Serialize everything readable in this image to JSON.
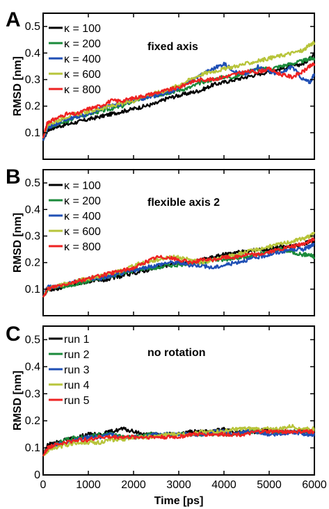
{
  "colors": {
    "black": "#000000",
    "green": "#1a8a3a",
    "blue": "#1f4fb5",
    "yellowgreen": "#b7c43a",
    "red": "#ee2222"
  },
  "x_axis": {
    "label": "Time [ps]",
    "range": [
      0,
      6000
    ],
    "ticks": [
      0,
      1000,
      2000,
      3000,
      4000,
      5000,
      6000
    ]
  },
  "chart_data": [
    {
      "type": "line",
      "panel_letter": "A",
      "annotation": "fixed axis",
      "ylabel": "RMSD [nm]",
      "ylim": [
        0,
        0.55
      ],
      "yticks": [
        "0.1",
        "0.2",
        "0.3",
        "0.4",
        "0.5"
      ],
      "x": [
        0,
        100,
        250,
        500,
        750,
        1000,
        1250,
        1500,
        1750,
        2000,
        2250,
        2500,
        2750,
        3000,
        3250,
        3500,
        3750,
        4000,
        4250,
        4500,
        4750,
        5000,
        5250,
        5500,
        5750,
        5900,
        6000
      ],
      "series": [
        {
          "name": "κ = 100",
          "values": [
            0.07,
            0.11,
            0.12,
            0.13,
            0.14,
            0.15,
            0.16,
            0.17,
            0.18,
            0.19,
            0.2,
            0.21,
            0.23,
            0.24,
            0.25,
            0.26,
            0.28,
            0.29,
            0.3,
            0.31,
            0.32,
            0.33,
            0.34,
            0.35,
            0.36,
            0.38,
            0.4
          ]
        },
        {
          "name": "κ = 200",
          "values": [
            0.07,
            0.12,
            0.13,
            0.14,
            0.16,
            0.17,
            0.18,
            0.19,
            0.2,
            0.22,
            0.23,
            0.24,
            0.25,
            0.26,
            0.27,
            0.29,
            0.3,
            0.31,
            0.31,
            0.33,
            0.34,
            0.34,
            0.35,
            0.36,
            0.37,
            0.38,
            0.38
          ]
        },
        {
          "name": "κ = 400",
          "values": [
            0.07,
            0.12,
            0.13,
            0.15,
            0.16,
            0.17,
            0.19,
            0.2,
            0.21,
            0.22,
            0.23,
            0.24,
            0.25,
            0.27,
            0.29,
            0.32,
            0.34,
            0.36,
            0.33,
            0.32,
            0.35,
            0.33,
            0.32,
            0.35,
            0.3,
            0.29,
            0.32
          ]
        },
        {
          "name": "κ = 600",
          "values": [
            0.08,
            0.13,
            0.14,
            0.16,
            0.17,
            0.18,
            0.19,
            0.2,
            0.21,
            0.22,
            0.24,
            0.25,
            0.26,
            0.28,
            0.3,
            0.32,
            0.33,
            0.34,
            0.35,
            0.36,
            0.37,
            0.38,
            0.39,
            0.4,
            0.41,
            0.43,
            0.44
          ]
        },
        {
          "name": "κ = 800",
          "values": [
            0.08,
            0.14,
            0.15,
            0.17,
            0.17,
            0.19,
            0.2,
            0.22,
            0.22,
            0.23,
            0.24,
            0.25,
            0.26,
            0.27,
            0.29,
            0.3,
            0.3,
            0.31,
            0.32,
            0.33,
            0.33,
            0.34,
            0.32,
            0.31,
            0.33,
            0.35,
            0.36
          ]
        }
      ]
    },
    {
      "type": "line",
      "panel_letter": "B",
      "annotation": "flexible axis 2",
      "ylabel": "RMSD [nm]",
      "ylim": [
        0,
        0.55
      ],
      "yticks": [
        "0.1",
        "0.2",
        "0.3",
        "0.4",
        "0.5"
      ],
      "x": [
        0,
        100,
        250,
        500,
        750,
        1000,
        1250,
        1500,
        1750,
        2000,
        2250,
        2500,
        2750,
        3000,
        3250,
        3500,
        3750,
        4000,
        4250,
        4500,
        4750,
        5000,
        5250,
        5500,
        5750,
        5900,
        6000
      ],
      "series": [
        {
          "name": "κ = 100",
          "values": [
            0.07,
            0.1,
            0.1,
            0.11,
            0.12,
            0.13,
            0.13,
            0.14,
            0.15,
            0.16,
            0.17,
            0.18,
            0.19,
            0.2,
            0.2,
            0.21,
            0.22,
            0.23,
            0.24,
            0.24,
            0.25,
            0.25,
            0.26,
            0.26,
            0.27,
            0.28,
            0.28
          ]
        },
        {
          "name": "κ = 200",
          "values": [
            0.07,
            0.1,
            0.11,
            0.11,
            0.12,
            0.13,
            0.14,
            0.15,
            0.16,
            0.17,
            0.18,
            0.18,
            0.19,
            0.19,
            0.2,
            0.2,
            0.21,
            0.21,
            0.22,
            0.22,
            0.23,
            0.24,
            0.25,
            0.24,
            0.23,
            0.23,
            0.22
          ]
        },
        {
          "name": "κ = 400",
          "values": [
            0.07,
            0.11,
            0.11,
            0.12,
            0.13,
            0.14,
            0.14,
            0.15,
            0.16,
            0.17,
            0.18,
            0.19,
            0.2,
            0.2,
            0.19,
            0.19,
            0.18,
            0.19,
            0.2,
            0.21,
            0.22,
            0.23,
            0.24,
            0.25,
            0.25,
            0.26,
            0.27
          ]
        },
        {
          "name": "κ = 600",
          "values": [
            0.07,
            0.1,
            0.11,
            0.12,
            0.13,
            0.14,
            0.15,
            0.16,
            0.17,
            0.19,
            0.2,
            0.21,
            0.22,
            0.22,
            0.21,
            0.2,
            0.21,
            0.22,
            0.23,
            0.24,
            0.25,
            0.26,
            0.27,
            0.28,
            0.29,
            0.3,
            0.31
          ]
        },
        {
          "name": "κ = 800",
          "values": [
            0.07,
            0.1,
            0.11,
            0.12,
            0.13,
            0.14,
            0.15,
            0.16,
            0.17,
            0.18,
            0.2,
            0.22,
            0.22,
            0.21,
            0.2,
            0.21,
            0.21,
            0.22,
            0.22,
            0.23,
            0.23,
            0.24,
            0.25,
            0.26,
            0.27,
            0.28,
            0.29
          ]
        }
      ]
    },
    {
      "type": "line",
      "panel_letter": "C",
      "annotation": "no rotation",
      "ylabel": "RMSD [nm]",
      "ylim": [
        0,
        0.55
      ],
      "yticks": [
        "0",
        "0.1",
        "0.2",
        "0.3",
        "0.4",
        "0.5"
      ],
      "x": [
        0,
        100,
        250,
        500,
        750,
        1000,
        1250,
        1500,
        1750,
        2000,
        2250,
        2500,
        2750,
        3000,
        3250,
        3500,
        3750,
        4000,
        4250,
        4500,
        4750,
        5000,
        5250,
        5500,
        5750,
        5900,
        6000
      ],
      "series": [
        {
          "name": "run 1",
          "values": [
            0.07,
            0.11,
            0.12,
            0.13,
            0.14,
            0.15,
            0.15,
            0.16,
            0.17,
            0.16,
            0.15,
            0.15,
            0.15,
            0.15,
            0.16,
            0.16,
            0.16,
            0.17,
            0.16,
            0.16,
            0.16,
            0.17,
            0.16,
            0.16,
            0.16,
            0.16,
            0.16
          ]
        },
        {
          "name": "run 2",
          "values": [
            0.07,
            0.1,
            0.11,
            0.13,
            0.14,
            0.14,
            0.15,
            0.15,
            0.14,
            0.14,
            0.15,
            0.15,
            0.15,
            0.15,
            0.15,
            0.15,
            0.15,
            0.15,
            0.15,
            0.16,
            0.16,
            0.16,
            0.16,
            0.16,
            0.16,
            0.16,
            0.16
          ]
        },
        {
          "name": "run 3",
          "values": [
            0.07,
            0.1,
            0.11,
            0.12,
            0.13,
            0.14,
            0.14,
            0.15,
            0.14,
            0.14,
            0.14,
            0.15,
            0.15,
            0.15,
            0.15,
            0.15,
            0.16,
            0.16,
            0.15,
            0.16,
            0.16,
            0.15,
            0.15,
            0.16,
            0.15,
            0.15,
            0.15
          ]
        },
        {
          "name": "run 4",
          "values": [
            0.07,
            0.09,
            0.1,
            0.11,
            0.12,
            0.12,
            0.12,
            0.13,
            0.13,
            0.14,
            0.14,
            0.14,
            0.15,
            0.15,
            0.15,
            0.16,
            0.16,
            0.16,
            0.17,
            0.17,
            0.17,
            0.17,
            0.17,
            0.18,
            0.17,
            0.17,
            0.17
          ]
        },
        {
          "name": "run 5",
          "values": [
            0.07,
            0.1,
            0.11,
            0.12,
            0.13,
            0.13,
            0.14,
            0.14,
            0.14,
            0.14,
            0.14,
            0.14,
            0.14,
            0.14,
            0.15,
            0.15,
            0.15,
            0.15,
            0.15,
            0.15,
            0.16,
            0.16,
            0.16,
            0.16,
            0.16,
            0.16,
            0.16
          ]
        }
      ]
    }
  ]
}
